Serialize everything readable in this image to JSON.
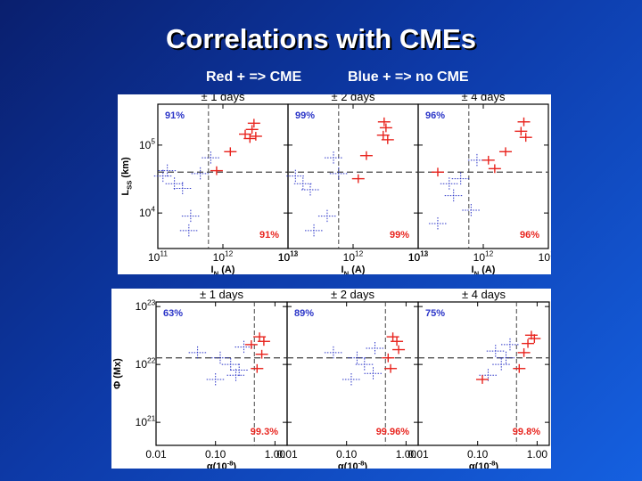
{
  "slide": {
    "title": "Correlations with CMEs",
    "legend_red": "Red + => CME",
    "legend_blue": "Blue + => no CME"
  },
  "colors": {
    "cme": "#e8241e",
    "no_cme": "#2b35c8",
    "axes": "#000000",
    "dashed": "#444444"
  },
  "chart_data": [
    {
      "type": "scatter",
      "name": "top-figure",
      "x_axis_label": "I_N (A)",
      "y_axis_label": "L_SS (km)",
      "x_scale": "log",
      "y_scale": "log",
      "xlim": [
        100000000000.0,
        10000000000000.0
      ],
      "ylim": [
        3000,
        400000
      ],
      "x_tick_labels": [
        "10^11",
        "10^12",
        "10^13"
      ],
      "x_tick_values": [
        100000000000.0,
        1000000000000.0,
        10000000000000.0
      ],
      "y_tick_labels": [
        "10^4",
        "10^5"
      ],
      "y_tick_values": [
        10000.0,
        100000.0
      ],
      "threshold_x": 600000000000.0,
      "threshold_y": 40000.0,
      "panels": [
        {
          "header": "± 1 days",
          "ann_upper_left": "91%",
          "ann_lower_right": "91%",
          "cme": [
            [
              2800000000000.0,
              170000.0
            ],
            [
              3200000000000.0,
              135000.0
            ],
            [
              2600000000000.0,
              125000.0
            ],
            [
              1300000000000.0,
              80000.0
            ],
            [
              800000000000.0,
              42000.0
            ],
            [
              2200000000000.0,
              145000.0
            ],
            [
              3000000000000.0,
              210000.0
            ]
          ],
          "no_cme": [
            [
              120000000000.0,
              35000.0
            ],
            [
              180000000000.0,
              27000.0
            ],
            [
              240000000000.0,
              23000.0
            ],
            [
              320000000000.0,
              9000.0
            ],
            [
              450000000000.0,
              38000.0
            ],
            [
              650000000000.0,
              65000.0
            ],
            [
              300000000000.0,
              5500.0
            ],
            [
              140000000000.0,
              42000.0
            ]
          ]
        },
        {
          "header": "± 2 days",
          "ann_upper_left": "99%",
          "ann_lower_right": "99%",
          "cme": [
            [
              3200000000000.0,
              180000.0
            ],
            [
              2900000000000.0,
              140000.0
            ],
            [
              3400000000000.0,
              120000.0
            ],
            [
              1600000000000.0,
              70000.0
            ],
            [
              1200000000000.0,
              32000.0
            ],
            [
              3000000000000.0,
              220000.0
            ]
          ],
          "no_cme": [
            [
              130000000000.0,
              35000.0
            ],
            [
              170000000000.0,
              27000.0
            ],
            [
              220000000000.0,
              22000.0
            ],
            [
              400000000000.0,
              9000.0
            ],
            [
              600000000000.0,
              38000.0
            ],
            [
              500000000000.0,
              65000.0
            ],
            [
              250000000000.0,
              5500.0
            ]
          ]
        },
        {
          "header": "± 4 days",
          "ann_upper_left": "96%",
          "ann_lower_right": "96%",
          "cme": [
            [
              4200000000000.0,
              220000.0
            ],
            [
              3800000000000.0,
              160000.0
            ],
            [
              4500000000000.0,
              130000.0
            ],
            [
              2200000000000.0,
              80000.0
            ],
            [
              1500000000000.0,
              45000.0
            ],
            [
              1200000000000.0,
              60000.0
            ],
            [
              200000000000.0,
              40000.0
            ]
          ],
          "no_cme": [
            [
              300000000000.0,
              27000.0
            ],
            [
              450000000000.0,
              32000.0
            ],
            [
              650000000000.0,
              11000.0
            ],
            [
              800000000000.0,
              60000.0
            ],
            [
              200000000000.0,
              7000.0
            ],
            [
              350000000000.0,
              18000.0
            ]
          ]
        }
      ]
    },
    {
      "type": "scatter",
      "name": "bottom-figure",
      "x_axis_label": "α(10^-8)",
      "y_axis_label": "Φ (Mx)",
      "x_scale": "log",
      "y_scale": "log",
      "xlim": [
        0.01,
        1.6
      ],
      "ylim": [
        4e+20,
        1.2e+23
      ],
      "x_tick_labels": [
        "0.01",
        "0.10",
        "1.00"
      ],
      "x_tick_values": [
        0.01,
        0.1,
        1.0
      ],
      "y_tick_labels": [
        "10^21",
        "10^22",
        "10^23"
      ],
      "y_tick_values": [
        1e+21,
        1e+22,
        1e+23
      ],
      "threshold_x": 0.45,
      "threshold_y": 1.3e+22,
      "panels": [
        {
          "header": "± 1 days",
          "ann_upper_left": "63%",
          "ann_lower_right": "99.3%",
          "cme": [
            [
              0.55,
              3e+22
            ],
            [
              0.65,
              2.5e+22
            ],
            [
              0.6,
              1.5e+22
            ],
            [
              0.4,
              2.2e+22
            ],
            [
              0.5,
              8.5e+21
            ]
          ],
          "no_cme": [
            [
              0.05,
              1.6e+22
            ],
            [
              0.12,
              1.3e+22
            ],
            [
              0.18,
              1e+22
            ],
            [
              0.25,
              8e+21
            ],
            [
              0.1,
              5.5e+21
            ],
            [
              0.3,
              2e+22
            ],
            [
              0.22,
              6.5e+21
            ]
          ]
        },
        {
          "header": "± 2 days",
          "ann_upper_left": "89%",
          "ann_lower_right": "99.96%",
          "cme": [
            [
              0.6,
              3e+22
            ],
            [
              0.7,
              2.5e+22
            ],
            [
              0.75,
              1.8e+22
            ],
            [
              0.5,
              1.3e+22
            ],
            [
              0.55,
              8.5e+21
            ]
          ],
          "no_cme": [
            [
              0.06,
              1.6e+22
            ],
            [
              0.15,
              1.3e+22
            ],
            [
              0.2,
              1e+22
            ],
            [
              0.3,
              1.9e+22
            ],
            [
              0.12,
              5.5e+21
            ],
            [
              0.28,
              7e+21
            ]
          ]
        },
        {
          "header": "± 4 days",
          "ann_upper_left": "75%",
          "ann_lower_right": "99.8%",
          "cme": [
            [
              0.8,
              3.2e+22
            ],
            [
              0.9,
              2.8e+22
            ],
            [
              0.7,
              2.3e+22
            ],
            [
              0.6,
              1.6e+22
            ],
            [
              0.5,
              8.5e+21
            ],
            [
              0.12,
              5.5e+21
            ]
          ],
          "no_cme": [
            [
              0.2,
              1.7e+22
            ],
            [
              0.3,
              1.3e+22
            ],
            [
              0.25,
              1e+22
            ],
            [
              0.15,
              6.5e+21
            ],
            [
              0.35,
              2.2e+22
            ]
          ]
        }
      ]
    }
  ]
}
